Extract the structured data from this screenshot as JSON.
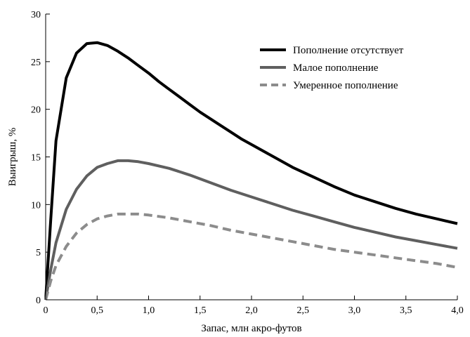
{
  "chart_data": {
    "type": "line",
    "xlabel": "Запас, млн акро-футов",
    "ylabel": "Выигрыш, %",
    "xlim": [
      0,
      4.0
    ],
    "ylim": [
      0,
      30
    ],
    "x_ticks": [
      0,
      0.5,
      1.0,
      1.5,
      2.0,
      2.5,
      3.0,
      3.5,
      4.0
    ],
    "x_tick_labels": [
      "0",
      "0,5",
      "1,0",
      "1,5",
      "2,0",
      "2,5",
      "3,0",
      "3,5",
      "4,0"
    ],
    "y_ticks": [
      0,
      5,
      10,
      15,
      20,
      25,
      30
    ],
    "y_tick_labels": [
      "0",
      "5",
      "10",
      "15",
      "20",
      "25",
      "30"
    ],
    "grid": false,
    "legend_position": "top-right",
    "series": [
      {
        "name": "Пополнение отсутствует",
        "color": "#000000",
        "style": "solid",
        "x": [
          0,
          0.05,
          0.1,
          0.2,
          0.3,
          0.4,
          0.5,
          0.6,
          0.7,
          0.8,
          0.9,
          1.0,
          1.1,
          1.2,
          1.3,
          1.4,
          1.5,
          1.6,
          1.7,
          1.8,
          1.9,
          2.0,
          2.2,
          2.4,
          2.6,
          2.8,
          3.0,
          3.2,
          3.4,
          3.6,
          3.8,
          4.0
        ],
        "values": [
          0,
          8.5,
          16.7,
          23.3,
          25.9,
          26.9,
          27.0,
          26.7,
          26.1,
          25.4,
          24.6,
          23.8,
          22.9,
          22.1,
          21.3,
          20.5,
          19.7,
          19.0,
          18.3,
          17.6,
          16.9,
          16.3,
          15.1,
          13.9,
          12.9,
          11.9,
          11.0,
          10.3,
          9.6,
          9.0,
          8.5,
          8.0
        ]
      },
      {
        "name": "Малое пополнение",
        "color": "#5f5f5f",
        "style": "solid",
        "x": [
          0,
          0.05,
          0.1,
          0.2,
          0.3,
          0.4,
          0.5,
          0.6,
          0.7,
          0.8,
          0.9,
          1.0,
          1.2,
          1.4,
          1.6,
          1.8,
          2.0,
          2.2,
          2.4,
          2.6,
          2.8,
          3.0,
          3.2,
          3.4,
          3.6,
          3.8,
          4.0
        ],
        "values": [
          0,
          3.2,
          6.0,
          9.5,
          11.6,
          13.0,
          13.9,
          14.3,
          14.6,
          14.6,
          14.5,
          14.3,
          13.8,
          13.1,
          12.3,
          11.5,
          10.8,
          10.1,
          9.4,
          8.8,
          8.2,
          7.6,
          7.1,
          6.6,
          6.2,
          5.8,
          5.4
        ]
      },
      {
        "name": "Умеренное пополнение",
        "color": "#8c8c8c",
        "style": "dashed",
        "x": [
          0,
          0.05,
          0.1,
          0.2,
          0.3,
          0.4,
          0.5,
          0.6,
          0.7,
          0.8,
          0.9,
          1.0,
          1.2,
          1.4,
          1.6,
          1.8,
          2.0,
          2.2,
          2.4,
          2.6,
          2.8,
          3.0,
          3.2,
          3.4,
          3.6,
          3.8,
          4.0
        ],
        "values": [
          0,
          2.0,
          3.6,
          5.6,
          7.0,
          7.9,
          8.5,
          8.8,
          9.0,
          9.0,
          9.0,
          8.9,
          8.6,
          8.2,
          7.8,
          7.3,
          6.9,
          6.5,
          6.1,
          5.7,
          5.3,
          5.0,
          4.7,
          4.4,
          4.1,
          3.8,
          3.4
        ]
      }
    ]
  }
}
